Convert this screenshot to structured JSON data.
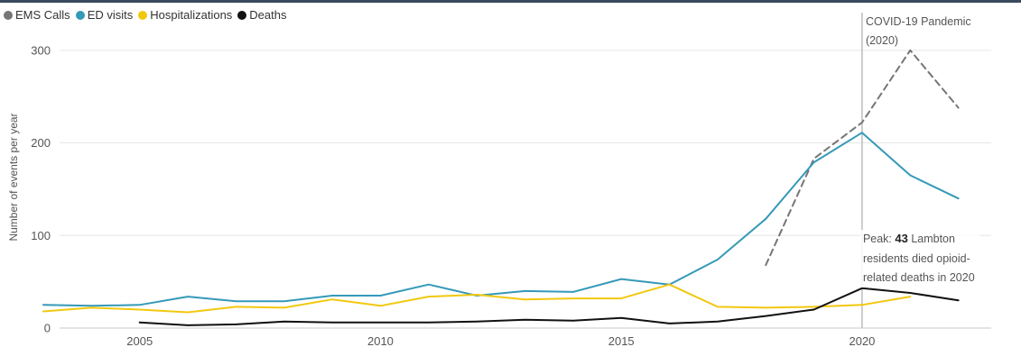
{
  "chart_data": {
    "type": "line",
    "ylabel": "Number of events per year",
    "xlabel": "",
    "xlim": [
      2002.1,
      2023.3
    ],
    "ylim": [
      0,
      330
    ],
    "x_ticks": [
      2005,
      2010,
      2015,
      2020
    ],
    "y_ticks": [
      0,
      100,
      200,
      300
    ],
    "grid": true,
    "legend_position": "top-left",
    "series": [
      {
        "name": "EMS Calls",
        "color": "#767676",
        "dashed": true,
        "x": [
          2018,
          2019,
          2020,
          2021,
          2022
        ],
        "y": [
          68,
          183,
          222,
          300,
          238
        ]
      },
      {
        "name": "ED visits",
        "color": "#3599b8",
        "dashed": false,
        "x": [
          2003,
          2004,
          2005,
          2006,
          2007,
          2008,
          2009,
          2010,
          2011,
          2012,
          2013,
          2014,
          2015,
          2016,
          2017,
          2018,
          2019,
          2020,
          2021,
          2022
        ],
        "y": [
          25,
          24,
          25,
          34,
          29,
          29,
          35,
          35,
          47,
          35,
          40,
          39,
          53,
          47,
          74,
          118,
          179,
          211,
          165,
          140
        ]
      },
      {
        "name": "Hospitalizations",
        "color": "#f2c80f",
        "dashed": false,
        "x": [
          2003,
          2004,
          2005,
          2006,
          2007,
          2008,
          2009,
          2010,
          2011,
          2012,
          2013,
          2014,
          2015,
          2016,
          2017,
          2018,
          2019,
          2020,
          2021
        ],
        "y": [
          18,
          22,
          20,
          17,
          23,
          22,
          31,
          24,
          34,
          36,
          31,
          32,
          32,
          47,
          23,
          22,
          23,
          25,
          34
        ]
      },
      {
        "name": "Deaths",
        "color": "#111111",
        "dashed": false,
        "x": [
          2003,
          2004,
          2005,
          2006,
          2007,
          2008,
          2009,
          2010,
          2011,
          2012,
          2013,
          2014,
          2015,
          2016,
          2017,
          2018,
          2019,
          2020,
          2021,
          2022
        ],
        "y": [
          null,
          null,
          6,
          3,
          4,
          7,
          6,
          6,
          6,
          7,
          9,
          8,
          11,
          5,
          7,
          13,
          20,
          43,
          38,
          30
        ]
      }
    ],
    "annotations": [
      {
        "kind": "vertical-line",
        "x": 2020,
        "lines": [
          "COVID-19 Pandemic",
          "(2020)"
        ]
      },
      {
        "kind": "callout",
        "prefix": "Peak: ",
        "value": "43",
        "suffix": " Lambton",
        "lines": [
          "residents died opioid-",
          "related deaths in 2020"
        ]
      }
    ]
  }
}
